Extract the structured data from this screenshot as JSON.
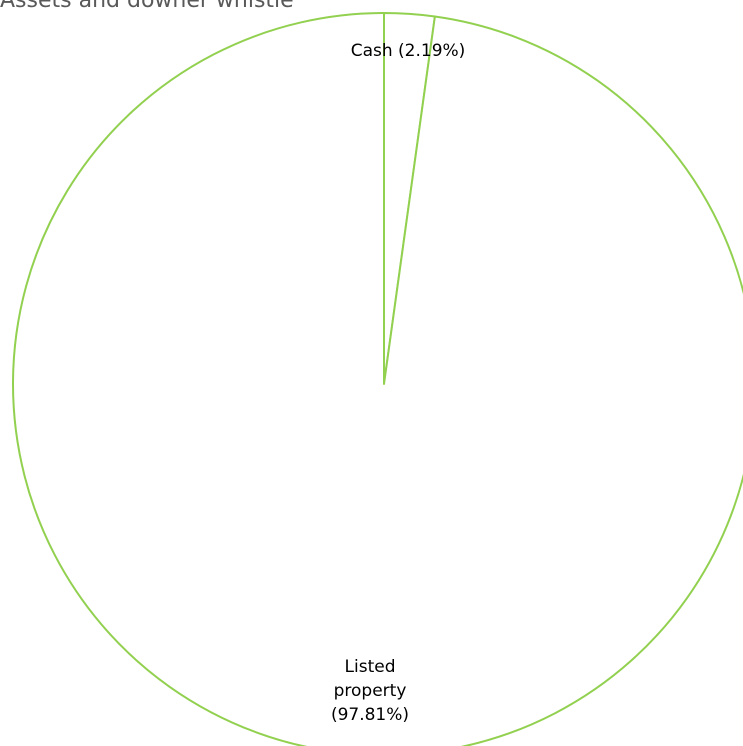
{
  "title": "Assets and downer whistle",
  "chart_data": {
    "type": "pie",
    "title": "Assets and downer whistle",
    "slices": [
      {
        "label": "Cash (2.19%)",
        "label_lines": [
          "Cash (2.19%)"
        ],
        "value": 2.19
      },
      {
        "label": "Listed property (97.81%)",
        "label_lines": [
          "Listed",
          "property",
          "(97.81%)"
        ],
        "value": 97.81
      }
    ],
    "start_angle_deg": 0,
    "direction": "clockwise",
    "colors": {
      "stroke": "#92D050",
      "fill": "#FFFFFF"
    },
    "legend": "none"
  }
}
